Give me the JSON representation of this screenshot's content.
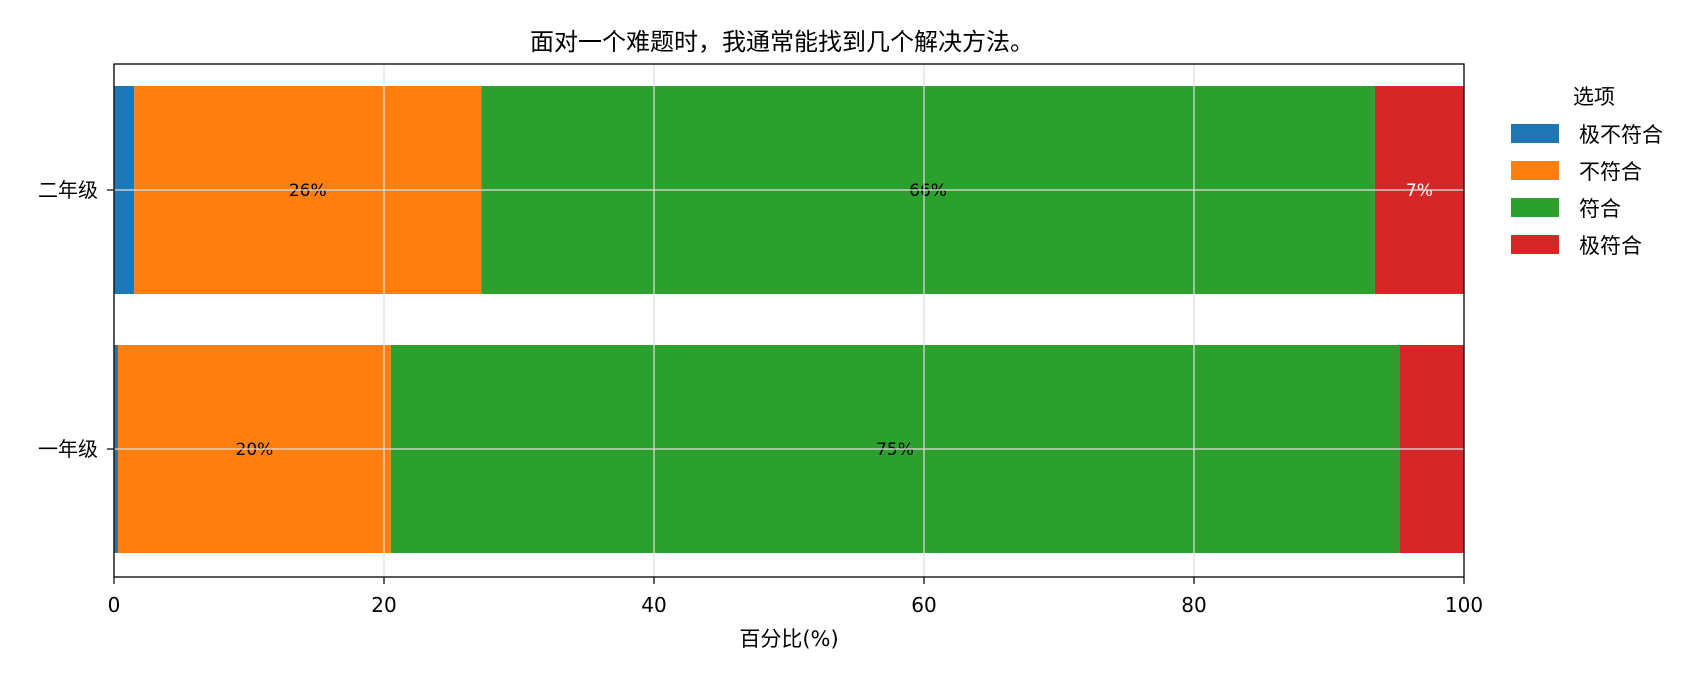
{
  "chart_data": {
    "type": "bar",
    "orientation": "horizontal",
    "stacked": true,
    "title": "面对一个难题时，我通常能找到几个解决方法。",
    "xlabel": "百分比(%)",
    "ylabel": "",
    "xlim": [
      0,
      100
    ],
    "xticks": [
      "0",
      "20",
      "40",
      "60",
      "80",
      "100"
    ],
    "grid": true,
    "categories": [
      "二年级",
      "一年级"
    ],
    "series": [
      {
        "name": "极不符合",
        "color": "#1f77b4",
        "values": [
          1.5,
          0.3
        ],
        "labels": [
          "",
          ""
        ]
      },
      {
        "name": "不符合",
        "color": "#ff7f0e",
        "values": [
          25.7,
          20.2
        ],
        "labels": [
          "26%",
          "20%"
        ]
      },
      {
        "name": "符合",
        "color": "#2ca02c",
        "values": [
          66.2,
          74.7
        ],
        "labels": [
          "66%",
          "75%"
        ]
      },
      {
        "name": "极符合",
        "color": "#d62728",
        "values": [
          6.6,
          4.8
        ],
        "labels": [
          "7%",
          ""
        ]
      }
    ],
    "legend": {
      "title": "选项",
      "position": "outside-right"
    }
  }
}
